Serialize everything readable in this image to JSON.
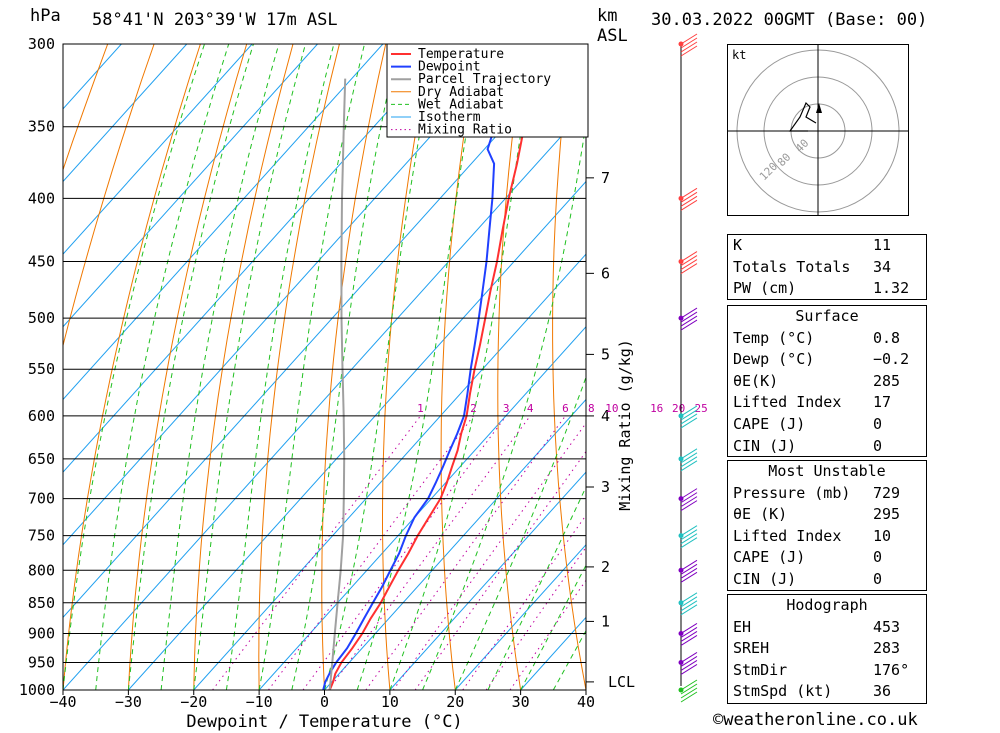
{
  "header": {
    "unit_hpa": "hPa",
    "location": "58°41'N 203°39'W 17m ASL",
    "km_label": "km",
    "asl_label": "ASL",
    "datetime": "30.03.2022 00GMT (Base: 00)"
  },
  "legend": [
    "Temperature",
    "Dewpoint",
    "Parcel Trajectory",
    "Dry Adiabat",
    "Wet Adiabat",
    "Isotherm",
    "Mixing Ratio"
  ],
  "colors": {
    "temperature": "#ff3030",
    "dewpoint": "#2040ff",
    "parcel": "#a0a0a0",
    "dry_adiabat": "#f07800",
    "wet_adiabat": "#20c020",
    "isotherm": "#20a0f0",
    "mixing_ratio": "#c000a0"
  },
  "chart_data": {
    "type": "line",
    "xlabel": "Dewpoint / Temperature (°C)",
    "ylabel": "hPa",
    "y2label": "Mixing Ratio (g/kg)",
    "xlim": [
      -40,
      40
    ],
    "ylim": [
      1000,
      300
    ],
    "x_ticks": [
      "−40",
      "−30",
      "−20",
      "−10",
      "0",
      "10",
      "20",
      "30",
      "40"
    ],
    "pressure_levels": [
      300,
      350,
      400,
      450,
      500,
      550,
      600,
      650,
      700,
      750,
      800,
      850,
      900,
      950,
      1000
    ],
    "km_ticks": [
      {
        "km": "1",
        "p": 880
      },
      {
        "km": "2",
        "p": 795
      },
      {
        "km": "3",
        "p": 685
      },
      {
        "km": "4",
        "p": 600
      },
      {
        "km": "5",
        "p": 535
      },
      {
        "km": "6",
        "p": 460
      },
      {
        "km": "7",
        "p": 385
      }
    ],
    "lcl_label": "LCL",
    "lcl_pressure": 985,
    "mixing_ratio_labels": [
      "1",
      "2",
      "3",
      "4",
      "6",
      "8",
      "10",
      "16",
      "20",
      "25"
    ],
    "series": [
      {
        "name": "Temperature",
        "p": [
          1000,
          985,
          970,
          950,
          925,
          900,
          875,
          850,
          825,
          800,
          775,
          750,
          725,
          700,
          680,
          660,
          640,
          620,
          600,
          575,
          550,
          525,
          500,
          475,
          450,
          425,
          400,
          375,
          350,
          325,
          300
        ],
        "t": [
          0.8,
          0.2,
          -0.6,
          -1.2,
          -1.5,
          -2.0,
          -2.8,
          -3.4,
          -4.3,
          -5.2,
          -6.0,
          -7.0,
          -7.8,
          -8.6,
          -9.8,
          -11.2,
          -12.6,
          -14.4,
          -16.0,
          -18.6,
          -21.2,
          -23.8,
          -26.6,
          -29.6,
          -32.6,
          -36.0,
          -39.5,
          -43.0,
          -47.0,
          -51.0,
          -55.0
        ]
      },
      {
        "name": "Dewpoint",
        "p": [
          1000,
          985,
          970,
          950,
          925,
          900,
          875,
          850,
          825,
          800,
          775,
          750,
          725,
          700,
          680,
          660,
          640,
          620,
          600,
          575,
          550,
          525,
          500,
          475,
          450,
          425,
          400,
          375,
          365,
          350,
          325,
          300
        ],
        "t": [
          -0.2,
          -1.0,
          -1.5,
          -2.0,
          -2.3,
          -3.0,
          -3.8,
          -4.6,
          -5.4,
          -6.4,
          -7.4,
          -8.8,
          -10.0,
          -10.5,
          -11.5,
          -12.6,
          -13.8,
          -15.0,
          -16.4,
          -19.0,
          -21.8,
          -24.6,
          -27.6,
          -30.8,
          -34.2,
          -38.0,
          -42.0,
          -46.5,
          -49.5,
          -51.5,
          -56.0,
          -61.0
        ]
      },
      {
        "name": "Parcel Trajectory",
        "p": [
          1000,
          950,
          900,
          850,
          800,
          750,
          700,
          650,
          600,
          550,
          500,
          450,
          400,
          350,
          320
        ],
        "t": [
          0.8,
          -2.6,
          -6.2,
          -10.0,
          -14.0,
          -18.4,
          -23.4,
          -28.8,
          -34.8,
          -41.4,
          -48.6,
          -56.4,
          -65.0,
          -74.6,
          -81.0
        ]
      }
    ]
  },
  "hodograph": {
    "unit": "kt",
    "ring_labels": [
      "40",
      "80",
      "120"
    ]
  },
  "indices": [
    {
      "label": "K",
      "value": "11"
    },
    {
      "label": "Totals Totals",
      "value": "34"
    },
    {
      "label": "PW (cm)",
      "value": "1.32"
    }
  ],
  "surface": {
    "title": "Surface",
    "rows": [
      {
        "label": "Temp (°C)",
        "value": "0.8"
      },
      {
        "label": "Dewp (°C)",
        "value": "−0.2"
      },
      {
        "label": "θE(K)",
        "value": "285"
      },
      {
        "label": "Lifted Index",
        "value": "17"
      },
      {
        "label": "CAPE (J)",
        "value": "0"
      },
      {
        "label": "CIN (J)",
        "value": "0"
      }
    ]
  },
  "most_unstable": {
    "title": "Most Unstable",
    "rows": [
      {
        "label": "Pressure (mb)",
        "value": "729"
      },
      {
        "label": "θE (K)",
        "value": "295"
      },
      {
        "label": "Lifted Index",
        "value": "10"
      },
      {
        "label": "CAPE (J)",
        "value": "0"
      },
      {
        "label": "CIN (J)",
        "value": "0"
      }
    ]
  },
  "hodograph_stats": {
    "title": "Hodograph",
    "rows": [
      {
        "label": "EH",
        "value": "453"
      },
      {
        "label": "SREH",
        "value": "283"
      },
      {
        "label": "StmDir",
        "value": "176°"
      },
      {
        "label": "StmSpd (kt)",
        "value": "36"
      }
    ]
  },
  "footer": "©weatheronline.co.uk"
}
